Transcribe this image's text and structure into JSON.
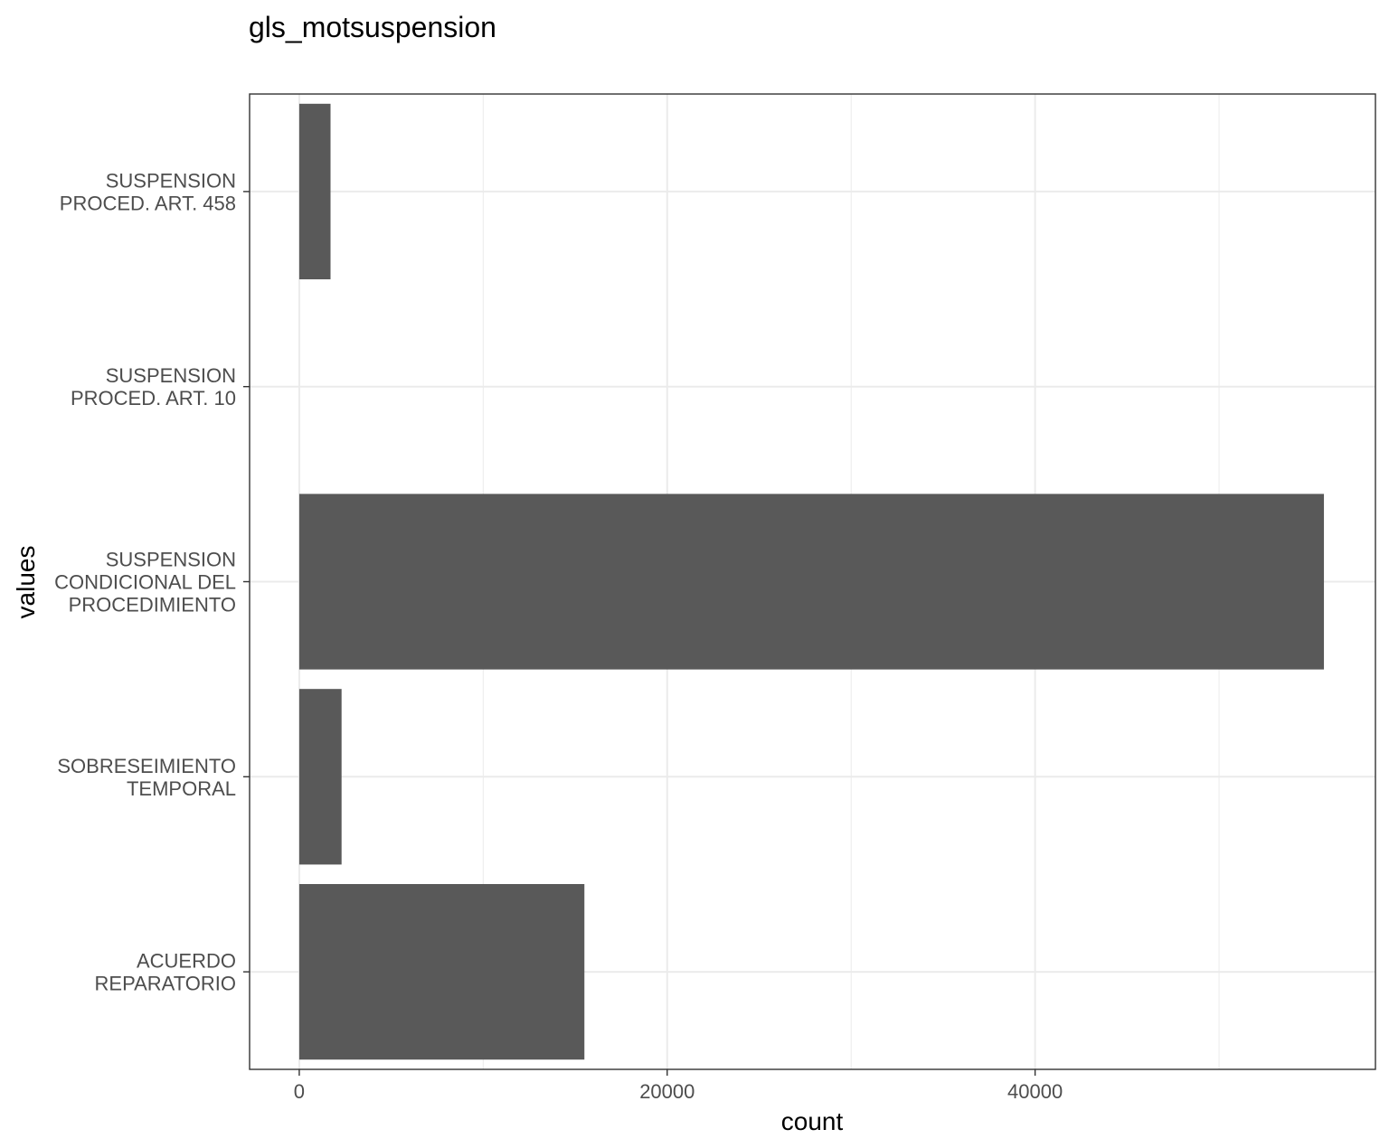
{
  "chart_data": {
    "type": "bar",
    "orientation": "horizontal",
    "title": "gls_motsuspension",
    "xlabel": "count",
    "ylabel": "values",
    "categories": [
      [
        "ACUERDO",
        "REPARATORIO"
      ],
      [
        "SOBRESEIMIENTO",
        "TEMPORAL"
      ],
      [
        "SUSPENSION",
        "CONDICIONAL DEL",
        "PROCEDIMIENTO"
      ],
      [
        "SUSPENSION",
        "PROCED. ART. 10"
      ],
      [
        "SUSPENSION",
        "PROCED. ART. 458"
      ]
    ],
    "values": [
      15500,
      2300,
      55700,
      0,
      1700
    ],
    "xlim": [
      -2700,
      58500
    ],
    "xticks": [
      0,
      20000,
      40000
    ],
    "xtick_labels": [
      "0",
      "20000",
      "40000"
    ],
    "minor_xticks": [
      10000,
      30000,
      50000
    ],
    "grid": true,
    "colors": {
      "bar": "#595959",
      "grid": "#ebebeb",
      "panel_border": "#333333",
      "tick_text": "#4d4d4d"
    }
  }
}
